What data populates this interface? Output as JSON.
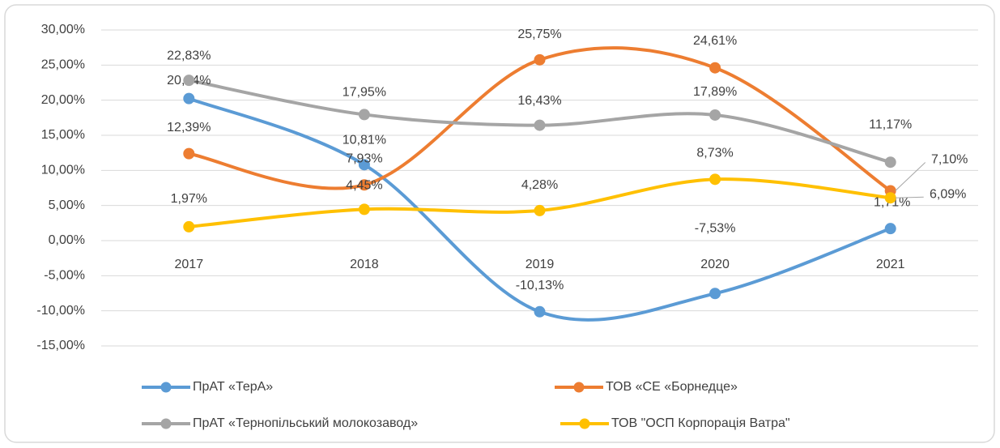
{
  "chart_data": {
    "type": "line",
    "smooth": true,
    "categories": [
      "2017",
      "2018",
      "2019",
      "2020",
      "2021"
    ],
    "series": [
      {
        "name": "ПрАТ «ТерА»",
        "color": "#5b9bd5",
        "values": [
          20.24,
          10.81,
          -10.13,
          -7.53,
          1.71
        ],
        "value_labels": [
          "20,24%",
          "10,81%",
          "-10,13%",
          "-7,53%",
          "1,71%"
        ]
      },
      {
        "name": "ТОВ «СЕ «Борнедце»",
        "color": "#ed7d31",
        "values": [
          12.39,
          7.93,
          25.75,
          24.61,
          7.1
        ],
        "value_labels": [
          "12,39%",
          "7,93%",
          "25,75%",
          "24,61%",
          "7,10%"
        ]
      },
      {
        "name": "ПрАТ «Тернопільський молокозавод»",
        "color": "#a5a5a5",
        "values": [
          22.83,
          17.95,
          16.43,
          17.89,
          11.17
        ],
        "value_labels": [
          "22,83%",
          "17,95%",
          "16,43%",
          "17,89%",
          "11,17%"
        ]
      },
      {
        "name": "ТОВ \"ОСП Корпорація Ватра\"",
        "color": "#ffc000",
        "values": [
          1.97,
          4.45,
          4.28,
          8.73,
          6.09
        ],
        "value_labels": [
          "1,97%",
          "4,45%",
          "4,28%",
          "8,73%",
          "6,09%"
        ]
      }
    ],
    "ylim": [
      -15,
      30
    ],
    "yticks": [
      {
        "value": -15,
        "label": "-15,00%"
      },
      {
        "value": -10,
        "label": "-10,00%"
      },
      {
        "value": -5,
        "label": "-5,00%"
      },
      {
        "value": 0,
        "label": "0,00%"
      },
      {
        "value": 5,
        "label": "5,00%"
      },
      {
        "value": 10,
        "label": "10,00%"
      },
      {
        "value": 15,
        "label": "15,00%"
      },
      {
        "value": 20,
        "label": "20,00%"
      },
      {
        "value": 25,
        "label": "25,00%"
      },
      {
        "value": 30,
        "label": "30,00%"
      }
    ],
    "grid": true,
    "legend": "bottom"
  }
}
